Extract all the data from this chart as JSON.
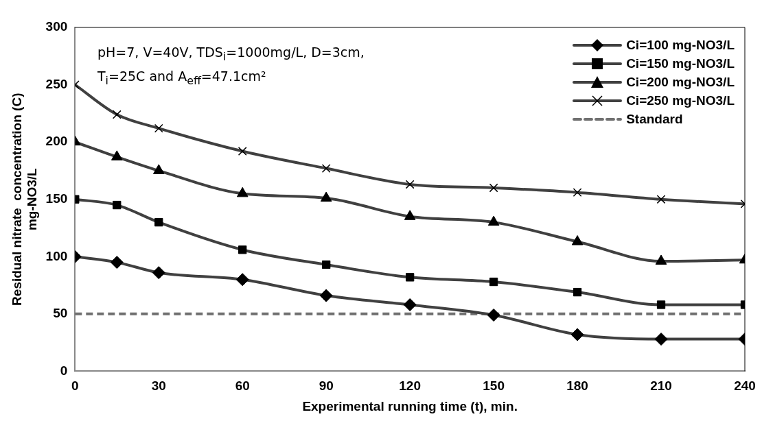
{
  "chart_data": {
    "type": "line",
    "xlabel": "Experimental running time (t), min.",
    "ylabel": "Residual nitrate  concentration (C)\nmg-NO3/L",
    "x": [
      0,
      15,
      30,
      60,
      90,
      120,
      150,
      180,
      210,
      240
    ],
    "xlim": [
      0,
      240
    ],
    "xticks": [
      0,
      30,
      60,
      90,
      120,
      150,
      180,
      210,
      240
    ],
    "ylim": [
      0,
      300
    ],
    "yticks": [
      0,
      50,
      100,
      150,
      200,
      250,
      300
    ],
    "grid": false,
    "legend": "top right",
    "line_style": "solid",
    "series": [
      {
        "name": "Ci=100 mg-NO3/L",
        "color": "#404040",
        "marker": "diamond",
        "values": [
          100,
          95,
          86,
          80,
          66,
          58,
          49,
          32,
          28,
          28
        ]
      },
      {
        "name": "Ci=150 mg-NO3/L",
        "color": "#404040",
        "marker": "square",
        "values": [
          150,
          145,
          130,
          106,
          93,
          82,
          78,
          69,
          58,
          58
        ]
      },
      {
        "name": "Ci=200 mg-NO3/L",
        "color": "#404040",
        "marker": "triangle",
        "values": [
          200,
          187,
          175,
          155,
          151,
          135,
          130,
          113,
          96,
          97
        ]
      },
      {
        "name": "Ci=250 mg-NO3/L",
        "color": "#404040",
        "marker": "cross",
        "values": [
          250,
          224,
          212,
          192,
          177,
          163,
          160,
          156,
          150,
          146
        ]
      }
    ],
    "ref_lines": [
      {
        "axis": "y",
        "value": 50,
        "label": "Standard",
        "color": "#707070",
        "line_style": "dashed"
      }
    ],
    "annotations": [
      "pH=7, V=40V, TDS$_{i}$=1000mg/L, D=3cm,\nT$_{i}$=25C and A$_{eff}$=47.1cm²"
    ]
  }
}
